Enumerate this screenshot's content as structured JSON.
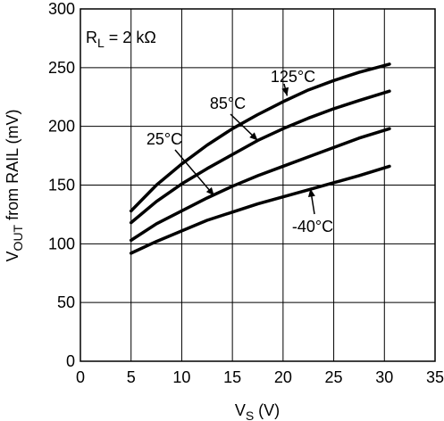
{
  "chart_data": {
    "type": "line",
    "title": "",
    "annotation_parts": {
      "main": "R",
      "sub": "L",
      "rest": " = 2 kΩ"
    },
    "xlabel_parts": {
      "main": "V",
      "sub": "S",
      "rest": " (V)"
    },
    "ylabel_parts": {
      "main": "V",
      "sub": "OUT",
      "rest": " from RAIL (mV)"
    },
    "xlim": [
      0,
      35
    ],
    "ylim": [
      0,
      300
    ],
    "x_ticks": [
      0,
      5,
      10,
      15,
      20,
      25,
      30,
      35
    ],
    "y_ticks": [
      0,
      50,
      100,
      150,
      200,
      250,
      300
    ],
    "grid": true,
    "series": [
      {
        "name": "125°C",
        "x": [
          5,
          7.5,
          10,
          12.5,
          15,
          17.5,
          20,
          22.5,
          25,
          27.5,
          30.5
        ],
        "y": [
          128,
          150,
          168,
          184,
          198,
          210,
          221,
          231,
          239,
          246,
          253
        ]
      },
      {
        "name": "85°C",
        "x": [
          5,
          7.5,
          10,
          12.5,
          15,
          17.5,
          20,
          22.5,
          25,
          27.5,
          30.5
        ],
        "y": [
          118,
          136,
          151,
          164,
          176,
          188,
          198,
          207,
          215,
          222,
          230
        ]
      },
      {
        "name": "25°C",
        "x": [
          5,
          7.5,
          10,
          12.5,
          15,
          17.5,
          20,
          22.5,
          25,
          27.5,
          30.5
        ],
        "y": [
          103,
          117,
          128,
          139,
          149,
          158,
          166,
          174,
          182,
          190,
          198
        ]
      },
      {
        "name": "-40°C",
        "x": [
          5,
          7.5,
          10,
          12.5,
          15,
          17.5,
          20,
          22.5,
          25,
          27.5,
          30.5
        ],
        "y": [
          92,
          102,
          111,
          120,
          127,
          134,
          140,
          146,
          152,
          158,
          166
        ]
      }
    ]
  }
}
